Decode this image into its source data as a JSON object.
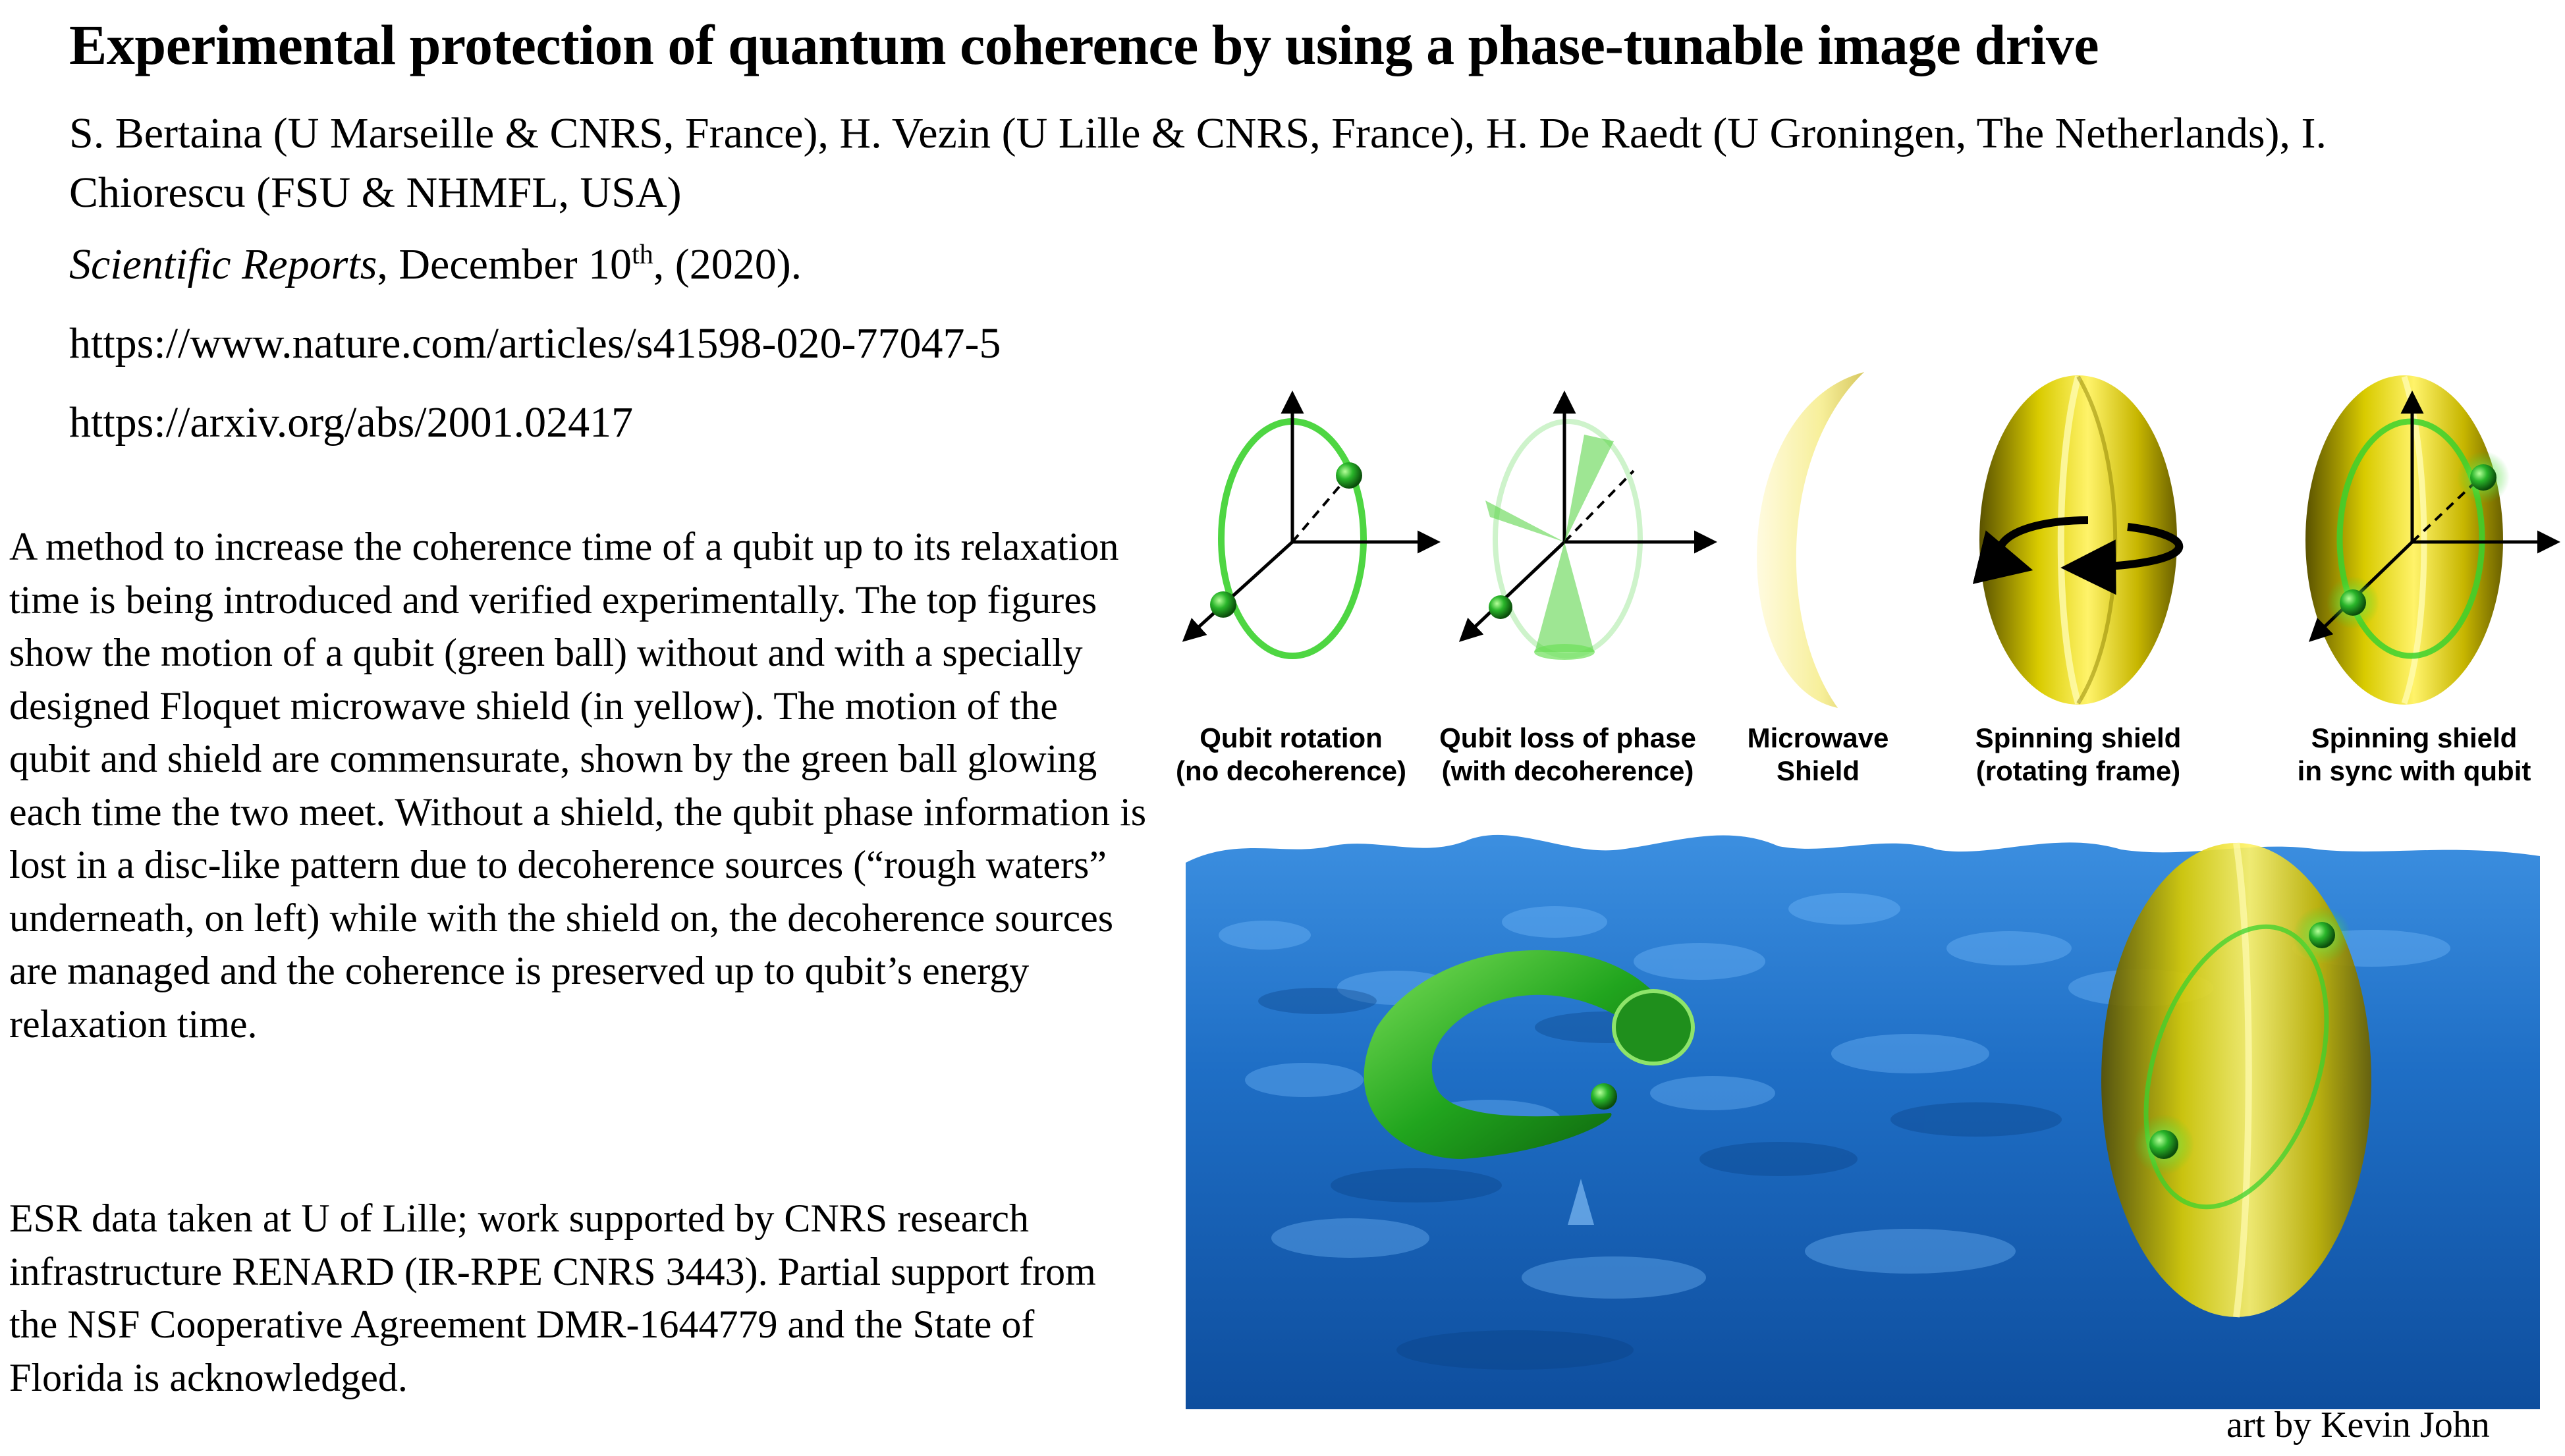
{
  "header": {
    "title": "Experimental protection of quantum coherence by using a phase-tunable image drive",
    "authors": "S. Bertaina (U Marseille & CNRS, France), H. Vezin (U Lille & CNRS, France), H. De Raedt (U Groningen, The Netherlands), I. Chiorescu (FSU & NHMFL, USA)",
    "journal_name": "Scientific Reports",
    "journal_date_pre": ", December 10",
    "journal_date_sup": "th",
    "journal_date_post": ", (2020).",
    "url_nature": "https://www.nature.com/articles/s41598-020-77047-5",
    "url_arxiv": "https://arxiv.org/abs/2001.02417"
  },
  "abstract": "A method to increase the coherence time of a qubit up to its relaxation time is being introduced and verified experimentally. The top figures show the motion of a qubit (green ball) without and with a specially designed Floquet microwave shield (in yellow). The motion of the qubit and shield are commensurate, shown by the green ball glowing each time the two meet. Without a shield, the qubit phase information is lost in a disc-like pattern due to decoherence sources (“rough waters” underneath, on left) while with the shield on, the decoherence sources are managed and the coherence is preserved up to qubit’s energy relaxation time.",
  "acknowledgment": "ESR data taken at U of Lille; work supported by CNRS research infrastructure RENARD (IR-RPE CNRS 3443). Partial support from the NSF Cooperative Agreement DMR-1644779 and the State of Florida is acknowledged.",
  "figure": {
    "panels": [
      {
        "line1": "Qubit rotation",
        "line2": "(no decoherence)",
        "icon": "qubit-rotation-icon"
      },
      {
        "line1": "Qubit loss of phase",
        "line2": "(with decoherence)",
        "icon": "qubit-dephasing-icon"
      },
      {
        "line1": "Microwave",
        "line2": "Shield",
        "icon": "microwave-shield-icon"
      },
      {
        "line1": "Spinning shield",
        "line2": "(rotating frame)",
        "icon": "spinning-shield-icon"
      },
      {
        "line1": "Spinning shield",
        "line2": "in sync with qubit",
        "icon": "synced-shield-icon"
      }
    ],
    "colors": {
      "qubit_green": "#1fa81f",
      "shield_yellow": "#e8d800",
      "water_blue": "#2f7fd0"
    },
    "credit": "art by Kevin John"
  }
}
